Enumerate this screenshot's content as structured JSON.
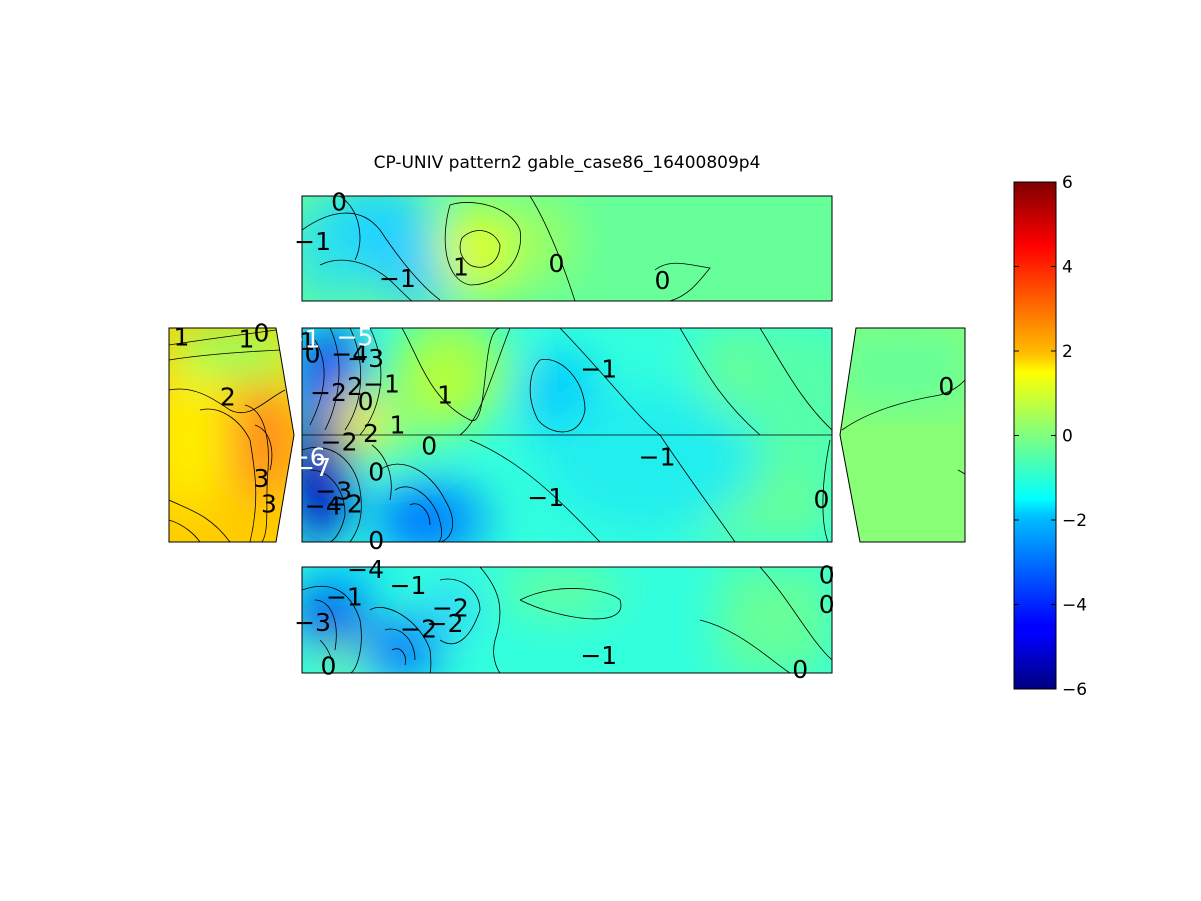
{
  "chart_data": {
    "type": "heatmap",
    "title": "CP-UNIV pattern2 gable_case86_16400809p4",
    "colorbar": {
      "range": [
        -6,
        6
      ],
      "ticks": [
        "6",
        "4",
        "2",
        "0",
        "−2",
        "−4",
        "−6"
      ],
      "colormap": "jet"
    },
    "panels": [
      {
        "name": "top",
        "labels": [
          {
            "text": "0",
            "u": 0.07,
            "v": 0.05,
            "value": 0
          },
          {
            "text": "−1",
            "u": 0.02,
            "v": 0.43,
            "value": -1
          },
          {
            "text": "−1",
            "u": 0.18,
            "v": 0.78,
            "value": -1
          },
          {
            "text": "1",
            "u": 0.3,
            "v": 0.67,
            "value": 1
          },
          {
            "text": "0",
            "u": 0.48,
            "v": 0.64,
            "value": 0
          },
          {
            "text": "0",
            "u": 0.68,
            "v": 0.8,
            "value": 0
          }
        ],
        "field": [
          {
            "u": 0.05,
            "v": 0.5,
            "value": -1.2
          },
          {
            "u": 0.14,
            "v": 0.35,
            "value": -1.5
          },
          {
            "u": 0.33,
            "v": 0.5,
            "value": 1.6
          },
          {
            "u": 0.47,
            "v": 0.45,
            "value": 0.4
          },
          {
            "u": 0.7,
            "v": 0.5,
            "value": 0.0
          },
          {
            "u": 0.92,
            "v": 0.5,
            "value": 0.0
          }
        ]
      },
      {
        "name": "left-gable",
        "labels": [
          {
            "text": "1",
            "u": 0.1,
            "v": 0.04,
            "value": 1
          },
          {
            "text": "1",
            "u": 0.62,
            "v": 0.05,
            "value": 1
          },
          {
            "text": "0",
            "u": 0.74,
            "v": 0.02,
            "value": 0
          },
          {
            "text": "2",
            "u": 0.47,
            "v": 0.32,
            "value": 2
          },
          {
            "text": "3",
            "u": 0.74,
            "v": 0.7,
            "value": 3
          },
          {
            "text": "3",
            "u": 0.8,
            "v": 0.82,
            "value": 3
          }
        ],
        "field": [
          {
            "u": 0.2,
            "v": 0.15,
            "value": 1.0
          },
          {
            "u": 0.2,
            "v": 0.55,
            "value": 1.8
          },
          {
            "u": 0.8,
            "v": 0.5,
            "value": 3.2
          },
          {
            "u": 0.6,
            "v": 0.85,
            "value": 2.6
          }
        ]
      },
      {
        "name": "left-roof",
        "labels": [
          {
            "text": "−2",
            "u": 0.05,
            "v": 0.3,
            "value": -2
          },
          {
            "text": "2",
            "u": 0.1,
            "v": 0.27,
            "value": 2
          },
          {
            "text": "0",
            "u": 0.12,
            "v": 0.34,
            "value": 0
          },
          {
            "text": "−1",
            "u": 0.15,
            "v": 0.26,
            "value": -1
          },
          {
            "text": "1",
            "u": 0.27,
            "v": 0.31,
            "value": 1
          },
          {
            "text": "−3",
            "u": 0.12,
            "v": 0.14,
            "value": -3
          },
          {
            "text": "−4",
            "u": 0.09,
            "v": 0.12,
            "value": -4
          },
          {
            "text": "2",
            "u": 0.13,
            "v": 0.49,
            "value": 2
          },
          {
            "text": "1",
            "u": 0.18,
            "v": 0.45,
            "value": 1
          },
          {
            "text": "0",
            "u": 0.24,
            "v": 0.55,
            "value": 0
          },
          {
            "text": "1",
            "u": 0.01,
            "v": 0.06,
            "value": 1
          },
          {
            "text": "0",
            "u": 0.02,
            "v": 0.12,
            "value": 0
          },
          {
            "text": "−1",
            "u": 0.56,
            "v": 0.19,
            "value": -1
          },
          {
            "text": "−1",
            "u": 0.67,
            "v": 0.6,
            "value": -1
          },
          {
            "text": "−1",
            "u": 0.46,
            "v": 0.79,
            "value": -1
          },
          {
            "text": "0",
            "u": 0.98,
            "v": 0.8,
            "value": 0
          },
          {
            "text": "−2",
            "u": 0.07,
            "v": 0.53,
            "value": -2
          },
          {
            "text": "0",
            "u": 0.14,
            "v": 0.67,
            "value": 0
          },
          {
            "text": "−3",
            "u": 0.06,
            "v": 0.76,
            "value": -3
          },
          {
            "text": "−4",
            "u": 0.04,
            "v": 0.83,
            "value": -4
          },
          {
            "text": "−2",
            "u": 0.08,
            "v": 0.82,
            "value": -2
          },
          {
            "text": "0",
            "u": 0.14,
            "v": 0.99,
            "value": 0
          }
        ],
        "label_white": [
          {
            "text": "−5",
            "u": 0.1,
            "v": 0.04,
            "value": -5
          },
          {
            "text": "−1",
            "u": 0.0,
            "v": 0.05,
            "value": -1
          },
          {
            "text": "−6",
            "u": 0.01,
            "v": 0.6,
            "value": -6
          },
          {
            "text": "−7",
            "u": 0.02,
            "v": 0.65,
            "value": -7
          }
        ],
        "field": [
          {
            "u": 0.01,
            "v": 0.65,
            "value": -6.5
          },
          {
            "u": 0.05,
            "v": 0.25,
            "value": -4.5
          },
          {
            "u": 0.08,
            "v": 0.85,
            "value": -4.2
          },
          {
            "u": 0.22,
            "v": 0.9,
            "value": -2.6
          },
          {
            "u": 0.28,
            "v": 0.3,
            "value": 1.0
          },
          {
            "u": 0.47,
            "v": 0.32,
            "value": -1.9
          },
          {
            "u": 0.6,
            "v": 0.75,
            "value": -1.3
          },
          {
            "u": 0.9,
            "v": 0.4,
            "value": -0.6
          },
          {
            "u": 0.97,
            "v": 0.85,
            "value": -0.1
          }
        ]
      },
      {
        "name": "right-gable",
        "labels": [
          {
            "text": "0",
            "u": 0.85,
            "v": 0.27,
            "value": 0
          }
        ],
        "field": [
          {
            "u": 0.3,
            "v": 0.2,
            "value": 0.0
          },
          {
            "u": 0.5,
            "v": 0.65,
            "value": 0.6
          }
        ]
      },
      {
        "name": "bottom",
        "labels": [
          {
            "text": "−4",
            "u": 0.12,
            "v": 0.02,
            "value": -4
          },
          {
            "text": "−1",
            "u": 0.08,
            "v": 0.28,
            "value": -1
          },
          {
            "text": "−1",
            "u": 0.2,
            "v": 0.17,
            "value": -1
          },
          {
            "text": "−3",
            "u": 0.02,
            "v": 0.52,
            "value": -3
          },
          {
            "text": "−2",
            "u": 0.22,
            "v": 0.58,
            "value": -2
          },
          {
            "text": "−2",
            "u": 0.27,
            "v": 0.53,
            "value": -2
          },
          {
            "text": "−2",
            "u": 0.28,
            "v": 0.38,
            "value": -2
          },
          {
            "text": "0",
            "u": 0.05,
            "v": 0.93,
            "value": 0
          },
          {
            "text": "−1",
            "u": 0.56,
            "v": 0.83,
            "value": -1
          },
          {
            "text": "0",
            "u": 0.99,
            "v": 0.07,
            "value": 0
          },
          {
            "text": "0",
            "u": 0.99,
            "v": 0.35,
            "value": 0
          },
          {
            "text": "0",
            "u": 0.94,
            "v": 0.96,
            "value": 0
          }
        ],
        "field": [
          {
            "u": 0.04,
            "v": 0.25,
            "value": -3.8
          },
          {
            "u": 0.19,
            "v": 0.8,
            "value": -4.0
          },
          {
            "u": 0.29,
            "v": 0.55,
            "value": -2.5
          },
          {
            "u": 0.55,
            "v": 0.55,
            "value": -1.3
          },
          {
            "u": 0.88,
            "v": 0.6,
            "value": -0.7
          }
        ]
      }
    ]
  }
}
